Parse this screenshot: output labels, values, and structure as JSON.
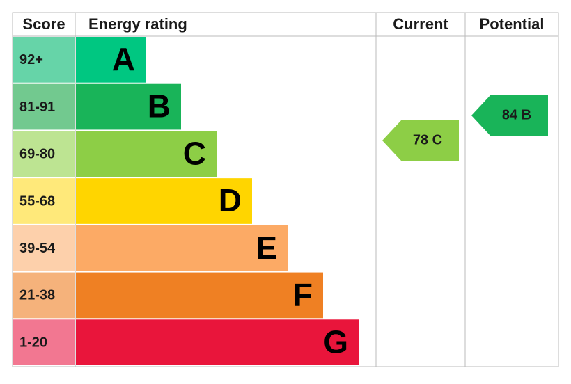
{
  "header": {
    "score": "Score",
    "rating": "Energy rating",
    "current": "Current",
    "potential": "Potential"
  },
  "bands": [
    {
      "score": "92+",
      "letter": "A",
      "color": "#00c781",
      "score_color": "#66d4a8"
    },
    {
      "score": "81-91",
      "letter": "B",
      "color": "#19b459",
      "score_color": "#72c98f"
    },
    {
      "score": "69-80",
      "letter": "C",
      "color": "#8dce46",
      "score_color": "#bde492"
    },
    {
      "score": "55-68",
      "letter": "D",
      "color": "#ffd500",
      "score_color": "#ffe97a"
    },
    {
      "score": "39-54",
      "letter": "E",
      "color": "#fcaa65",
      "score_color": "#fdd0ab"
    },
    {
      "score": "21-38",
      "letter": "F",
      "color": "#ef8023",
      "score_color": "#f5b27b"
    },
    {
      "score": "1-20",
      "letter": "G",
      "color": "#e9153b",
      "score_color": "#f27791"
    }
  ],
  "current": {
    "value": 78,
    "label": "78 C",
    "color": "#8dce46"
  },
  "potential": {
    "value": 84,
    "label": "84 B",
    "color": "#19b459"
  }
}
